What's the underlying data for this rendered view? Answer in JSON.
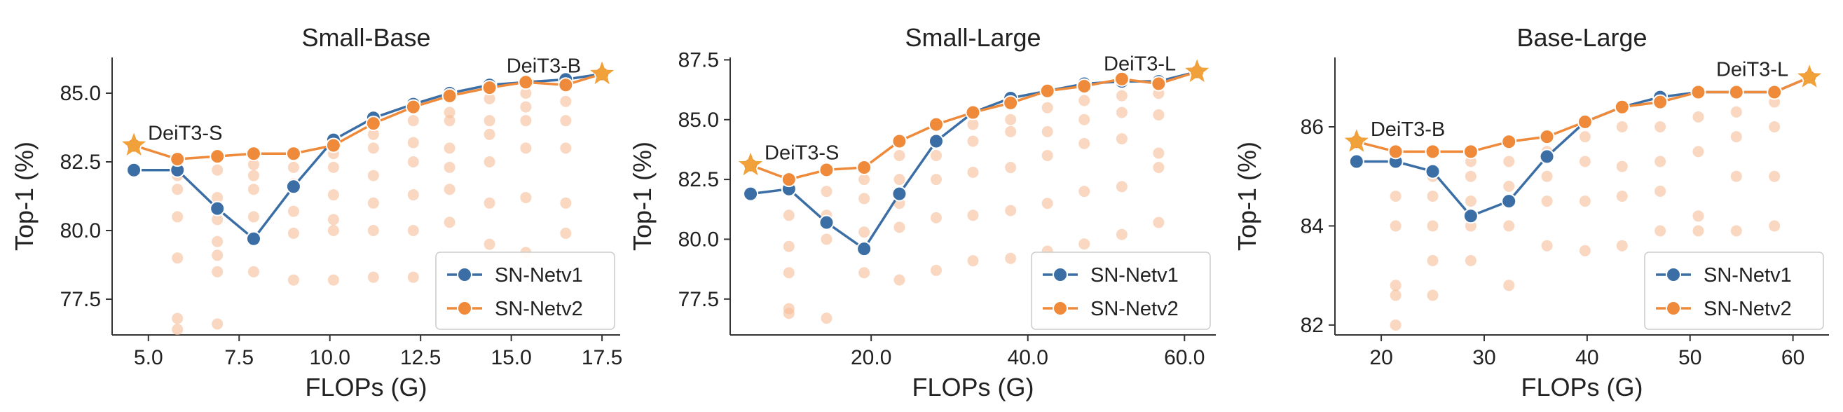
{
  "chart_data": [
    {
      "type": "line",
      "title": "Small-Base",
      "xlabel": "FLOPs (G)",
      "ylabel": "Top-1 (%)",
      "xlim": [
        4.0,
        18.0
      ],
      "ylim": [
        76.2,
        86.3
      ],
      "xticks": [
        5.0,
        7.5,
        10.0,
        12.5,
        15.0,
        17.5
      ],
      "yticks": [
        77.5,
        80.0,
        82.5,
        85.0
      ],
      "tick_format": 1,
      "legend": {
        "position": "lower-right",
        "entries": [
          "SN-Netv1",
          "SN-Netv2"
        ]
      },
      "series": [
        {
          "name": "SN-Netv1",
          "color": "#3a6ea5",
          "x": [
            4.6,
            5.8,
            6.9,
            7.9,
            9.0,
            10.1,
            11.2,
            12.3,
            13.3,
            14.4,
            15.4,
            16.5,
            17.5
          ],
          "y": [
            82.2,
            82.2,
            80.8,
            79.7,
            81.6,
            83.3,
            84.1,
            84.6,
            85.0,
            85.3,
            85.4,
            85.5,
            85.7
          ]
        },
        {
          "name": "SN-Netv2",
          "color": "#ee8a3a",
          "x": [
            4.6,
            5.8,
            6.9,
            7.9,
            9.0,
            10.1,
            11.2,
            12.3,
            13.3,
            14.4,
            15.4,
            16.5,
            17.5
          ],
          "y": [
            83.1,
            82.6,
            82.7,
            82.8,
            82.8,
            83.1,
            83.9,
            84.5,
            84.9,
            85.2,
            85.4,
            85.3,
            85.7
          ]
        }
      ],
      "anchors": [
        {
          "label": "DeiT3-S",
          "x": 4.6,
          "y": 83.1,
          "color": "#f0a13a"
        },
        {
          "label": "DeiT3-B",
          "x": 17.5,
          "y": 85.7,
          "color": "#f0a13a"
        }
      ],
      "scatter": {
        "name": "sampled-configs",
        "color": "#f5bd96",
        "x": [
          5.8,
          5.8,
          5.8,
          5.8,
          5.8,
          5.8,
          6.9,
          6.9,
          6.9,
          6.9,
          6.9,
          6.9,
          6.9,
          7.9,
          7.9,
          7.9,
          7.9,
          7.9,
          9.0,
          9.0,
          9.0,
          9.0,
          9.0,
          10.1,
          10.1,
          10.1,
          10.1,
          10.1,
          10.1,
          11.2,
          11.2,
          11.2,
          11.2,
          11.2,
          11.2,
          12.3,
          12.3,
          12.3,
          12.3,
          12.3,
          12.3,
          13.3,
          13.3,
          13.3,
          13.3,
          13.3,
          13.3,
          14.4,
          14.4,
          14.4,
          14.4,
          14.4,
          14.4,
          15.4,
          15.4,
          15.4,
          15.4,
          15.4,
          15.4,
          16.5,
          16.5,
          16.5,
          16.5,
          16.5
        ],
        "y": [
          76.4,
          76.8,
          79.0,
          80.5,
          81.5,
          82.0,
          76.6,
          78.5,
          79.1,
          79.6,
          80.4,
          81.2,
          82.2,
          78.5,
          80.5,
          81.5,
          82.0,
          82.4,
          78.2,
          79.9,
          80.7,
          81.7,
          82.3,
          78.2,
          80.0,
          80.4,
          81.3,
          82.3,
          82.8,
          78.3,
          80.0,
          81.0,
          82.0,
          83.0,
          83.5,
          78.3,
          80.0,
          81.3,
          82.5,
          83.2,
          84.0,
          80.3,
          81.5,
          82.3,
          83.0,
          84.0,
          84.3,
          79.5,
          81.0,
          82.5,
          83.5,
          84.0,
          84.8,
          79.2,
          81.2,
          83.0,
          84.0,
          84.5,
          85.0,
          79.9,
          81.0,
          83.0,
          84.0,
          84.7
        ]
      }
    },
    {
      "type": "line",
      "title": "Small-Large",
      "xlabel": "FLOPs (G)",
      "ylabel": "Top-1 (%)",
      "xlim": [
        2.0,
        64.0
      ],
      "ylim": [
        76.0,
        87.6
      ],
      "xticks": [
        20,
        40,
        60
      ],
      "yticks": [
        77.5,
        80.0,
        82.5,
        85.0,
        87.5
      ],
      "tick_format": 1,
      "legend": {
        "position": "lower-right",
        "entries": [
          "SN-Netv1",
          "SN-Netv2"
        ]
      },
      "series": [
        {
          "name": "SN-Netv1",
          "color": "#3a6ea5",
          "x": [
            4.6,
            9.5,
            14.3,
            19.1,
            23.6,
            28.3,
            33.0,
            37.8,
            42.5,
            47.2,
            52.0,
            56.7,
            61.6
          ],
          "y": [
            81.9,
            82.1,
            80.7,
            79.6,
            81.9,
            84.1,
            85.3,
            85.9,
            86.2,
            86.5,
            86.6,
            86.6,
            87.0
          ]
        },
        {
          "name": "SN-Netv2",
          "color": "#ee8a3a",
          "x": [
            4.6,
            9.5,
            14.3,
            19.1,
            23.6,
            28.3,
            33.0,
            37.8,
            42.5,
            47.2,
            52.0,
            56.7,
            61.6
          ],
          "y": [
            83.1,
            82.5,
            82.9,
            83.0,
            84.1,
            84.8,
            85.3,
            85.7,
            86.2,
            86.4,
            86.7,
            86.5,
            87.0
          ]
        }
      ],
      "anchors": [
        {
          "label": "DeiT3-S",
          "x": 4.6,
          "y": 83.1,
          "color": "#f0a13a"
        },
        {
          "label": "DeiT3-L",
          "x": 61.6,
          "y": 87.0,
          "color": "#f0a13a"
        }
      ],
      "scatter": {
        "name": "sampled-configs",
        "color": "#f5bd96",
        "x": [
          9.5,
          9.5,
          9.5,
          9.5,
          9.5,
          14.3,
          14.3,
          14.3,
          14.3,
          19.1,
          19.1,
          19.1,
          19.1,
          23.6,
          23.6,
          23.6,
          23.6,
          23.6,
          28.3,
          28.3,
          28.3,
          28.3,
          33.0,
          33.0,
          33.0,
          33.0,
          33.0,
          37.8,
          37.8,
          37.8,
          37.8,
          37.8,
          42.5,
          42.5,
          42.5,
          42.5,
          42.5,
          47.2,
          47.2,
          47.2,
          47.2,
          47.2,
          52.0,
          52.0,
          52.0,
          52.0,
          52.0,
          56.7,
          56.7,
          56.7,
          56.7,
          56.7
        ],
        "y": [
          76.9,
          77.1,
          78.6,
          79.7,
          81.0,
          76.7,
          80.0,
          81.0,
          82.0,
          78.6,
          80.3,
          81.7,
          82.5,
          78.3,
          80.5,
          81.5,
          82.5,
          83.5,
          78.7,
          80.9,
          82.5,
          83.5,
          79.1,
          81.0,
          82.8,
          84.1,
          84.8,
          79.2,
          81.2,
          83.0,
          84.5,
          85.0,
          79.5,
          81.5,
          83.5,
          84.5,
          85.5,
          79.8,
          82.0,
          84.0,
          85.0,
          85.8,
          80.2,
          82.2,
          84.2,
          85.3,
          86.0,
          80.7,
          83.0,
          83.6,
          85.2,
          86.1
        ]
      }
    },
    {
      "type": "line",
      "title": "Base-Large",
      "xlabel": "FLOPs (G)",
      "ylabel": "Top-1 (%)",
      "xlim": [
        15.5,
        63.5
      ],
      "ylim": [
        81.8,
        87.4
      ],
      "xticks": [
        20,
        30,
        40,
        50,
        60
      ],
      "yticks": [
        82,
        84,
        86
      ],
      "tick_format": 0,
      "legend": {
        "position": "lower-right",
        "entries": [
          "SN-Netv1",
          "SN-Netv2"
        ]
      },
      "series": [
        {
          "name": "SN-Netv1",
          "color": "#3a6ea5",
          "x": [
            17.6,
            21.4,
            25.0,
            28.7,
            32.4,
            36.1,
            39.8,
            43.4,
            47.1,
            50.8,
            54.5,
            58.2,
            61.6
          ],
          "y": [
            85.3,
            85.3,
            85.1,
            84.2,
            84.5,
            85.4,
            86.1,
            86.4,
            86.6,
            86.7,
            86.7,
            86.7,
            87.0
          ]
        },
        {
          "name": "SN-Netv2",
          "color": "#ee8a3a",
          "x": [
            17.6,
            21.4,
            25.0,
            28.7,
            32.4,
            36.1,
            39.8,
            43.4,
            47.1,
            50.8,
            54.5,
            58.2,
            61.6
          ],
          "y": [
            85.7,
            85.5,
            85.5,
            85.5,
            85.7,
            85.8,
            86.1,
            86.4,
            86.5,
            86.7,
            86.7,
            86.7,
            87.0
          ]
        }
      ],
      "anchors": [
        {
          "label": "DeiT3-B",
          "x": 17.6,
          "y": 85.7,
          "color": "#f0a13a"
        },
        {
          "label": "DeiT3-L",
          "x": 61.6,
          "y": 87.0,
          "color": "#f0a13a"
        }
      ],
      "scatter": {
        "name": "sampled-configs",
        "color": "#f5bd96",
        "x": [
          21.4,
          21.4,
          21.4,
          21.4,
          21.4,
          25.0,
          25.0,
          25.0,
          25.0,
          25.0,
          28.7,
          28.7,
          28.7,
          28.7,
          28.7,
          32.4,
          32.4,
          32.4,
          32.4,
          36.1,
          36.1,
          36.1,
          36.1,
          39.8,
          39.8,
          39.8,
          39.8,
          43.4,
          43.4,
          43.4,
          43.4,
          47.1,
          47.1,
          47.1,
          47.1,
          50.8,
          50.8,
          50.8,
          50.8,
          54.5,
          54.5,
          54.5,
          54.5,
          58.2,
          58.2,
          58.2,
          58.2
        ],
        "y": [
          82.0,
          82.6,
          82.8,
          84.0,
          84.6,
          82.6,
          83.3,
          84.0,
          84.6,
          85.0,
          83.3,
          84.0,
          84.5,
          85.0,
          85.3,
          82.8,
          84.0,
          84.8,
          85.3,
          83.6,
          84.5,
          85.0,
          85.5,
          83.5,
          84.5,
          85.3,
          85.8,
          83.6,
          84.6,
          85.2,
          86.0,
          83.9,
          84.7,
          85.3,
          86.0,
          83.9,
          84.2,
          85.5,
          86.2,
          83.9,
          85.0,
          85.8,
          86.3,
          84.0,
          85.0,
          86.0,
          86.5
        ]
      }
    }
  ]
}
